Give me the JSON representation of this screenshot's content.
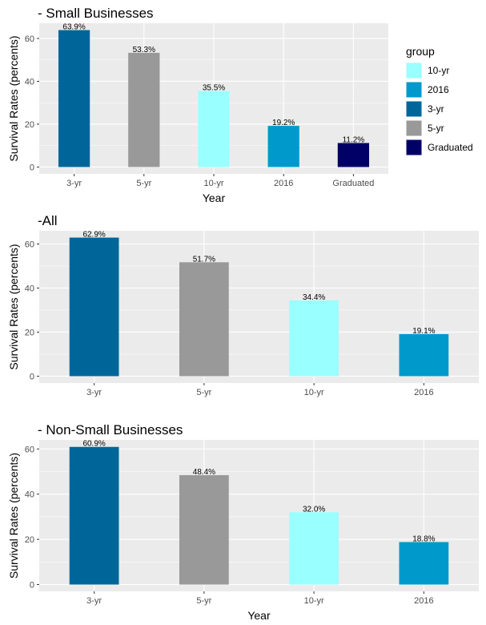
{
  "colors": {
    "3-yr": "#006699",
    "5-yr": "#999999",
    "10-yr": "#99ffff",
    "2016": "#0099cc",
    "Graduated": "#000066",
    "panel": "#ebebeb",
    "grid_major": "#ffffff"
  },
  "chart_data": [
    {
      "type": "bar",
      "title": "- Small Businesses",
      "xlabel": "Year",
      "ylabel": "Survival Rates (percents)",
      "categories": [
        "3-yr",
        "5-yr",
        "10-yr",
        "2016",
        "Graduated"
      ],
      "values": [
        63.9,
        53.3,
        35.5,
        19.2,
        11.2
      ],
      "labels": [
        "63.9%",
        "53.3%",
        "35.5%",
        "19.2%",
        "11.2%"
      ],
      "y_ticks": [
        0,
        20,
        40,
        60
      ],
      "ylim": [
        -3.2,
        67.1
      ],
      "grid": true,
      "legend": {
        "title": "group",
        "placement": "right",
        "items": [
          "10-yr",
          "2016",
          "3-yr",
          "5-yr",
          "Graduated"
        ]
      }
    },
    {
      "type": "bar",
      "title": "-All",
      "xlabel": "",
      "ylabel": "Survival Rates (percents)",
      "categories": [
        "3-yr",
        "5-yr",
        "10-yr",
        "2016"
      ],
      "values": [
        62.9,
        51.7,
        34.4,
        19.1
      ],
      "labels": [
        "62.9%",
        "51.7%",
        "34.4%",
        "19.1%"
      ],
      "y_ticks": [
        0,
        20,
        40,
        60
      ],
      "ylim": [
        -3.1,
        66.0
      ],
      "grid": true
    },
    {
      "type": "bar",
      "title": "- Non-Small Businesses",
      "xlabel": "Year",
      "ylabel": "Survival Rates (percents)",
      "categories": [
        "3-yr",
        "5-yr",
        "10-yr",
        "2016"
      ],
      "values": [
        60.9,
        48.4,
        32.0,
        18.8
      ],
      "labels": [
        "60.9%",
        "48.4%",
        "32.0%",
        "18.8%"
      ],
      "y_ticks": [
        0,
        20,
        40,
        60
      ],
      "ylim": [
        -3.0,
        64.0
      ],
      "grid": true
    }
  ]
}
